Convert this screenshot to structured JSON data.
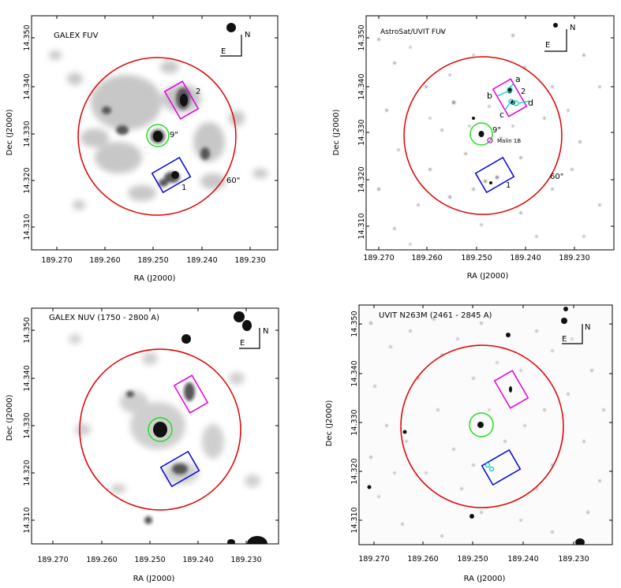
{
  "figure": {
    "panels": [
      {
        "id": "galex-fuv",
        "title": "GALEX FUV",
        "x_label": "RA (J2000)",
        "y_label": "Dec (J2000)",
        "x_ticks": [
          "189.270",
          "189.260",
          "189.250",
          "189.240",
          "189.230"
        ],
        "y_ticks": [
          "14.350",
          "14.340",
          "14.330",
          "14.320",
          "14.310"
        ],
        "compass_n": "N",
        "compass_e": "E",
        "label_box_1": "1",
        "label_box_2": "2",
        "label_inner_radius": "9\"",
        "label_outer_radius": "60\""
      },
      {
        "id": "astrosat-uvit-fuv",
        "title": "AstroSat/UVIT FUV",
        "x_label": "RA (J2000)",
        "y_label": "Dec (J2000)",
        "x_ticks": [
          "189.270",
          "189.260",
          "189.250",
          "189.240",
          "189.230"
        ],
        "y_ticks": [
          "14.350",
          "14.340",
          "14.330",
          "14.320",
          "14.310"
        ],
        "compass_n": "N",
        "compass_e": "E",
        "label_box_1": "1",
        "label_box_2": "2",
        "label_inner_radius": "9\"",
        "label_outer_radius": "60\"",
        "label_malin": "Malin 1B",
        "knots": [
          "a",
          "b",
          "c",
          "d"
        ]
      },
      {
        "id": "galex-nuv",
        "title": "GALEX NUV (1750 - 2800 A)",
        "x_label": "RA (J2000)",
        "y_label": "Dec (J2000)",
        "x_ticks": [
          "189.270",
          "189.260",
          "189.250",
          "189.240",
          "189.230"
        ],
        "y_ticks": [
          "14.350",
          "14.340",
          "14.330",
          "14.320",
          "14.310"
        ],
        "compass_n": "N",
        "compass_e": "E"
      },
      {
        "id": "uvit-n263m",
        "title": "UVIT N263M (2461 - 2845 A)",
        "x_label": "RA (J2000)",
        "y_label": "Dec (J2000)",
        "x_ticks": [
          "189.270",
          "189.260",
          "189.250",
          "189.240",
          "189.230"
        ],
        "y_ticks": [
          "14.350",
          "14.340",
          "14.330",
          "14.320",
          "14.310"
        ],
        "compass_n": "N",
        "compass_e": "E"
      }
    ],
    "colors": {
      "outer_circle": "#e00000",
      "inner_circle": "#22dd22",
      "box_2": "#e000e0",
      "box_1": "#0000dd",
      "knots": "#00cccc",
      "malin": "#cc33cc"
    }
  }
}
